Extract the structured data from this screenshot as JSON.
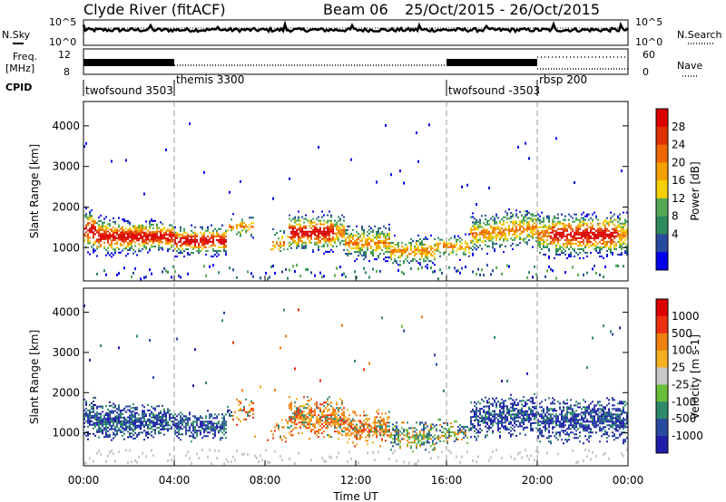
{
  "header": {
    "station": "Clyde River (fitACF)",
    "beam": "Beam 06",
    "date_range": "25/Oct/2015 - 26/Oct/2015"
  },
  "top_panels": {
    "nsky_label": "N.Sky",
    "nsearch_label": "N.Search",
    "freq_label": "Freq.",
    "freq_unit": "[MHz]",
    "nave_label": "Nave",
    "cpid_label": "CPID",
    "noise_ticks": [
      "10^5",
      "10^0"
    ],
    "freq_ticks": [
      "12",
      "8"
    ],
    "nave_ticks": [
      "60",
      "0"
    ]
  },
  "cpid_segments": [
    {
      "name": "twofsound 3503",
      "start_hour": 0
    },
    {
      "name": "themis 3300",
      "start_hour": 4
    },
    {
      "name": "twofsound -3503",
      "start_hour": 16
    },
    {
      "name": "rbsp 200",
      "start_hour": 20
    }
  ],
  "colors": {
    "power_scale": [
      "#0000ee",
      "#2a4a9e",
      "#2e8a5a",
      "#55aa55",
      "#f5d000",
      "#f4a000",
      "#ee6600",
      "#e03000",
      "#dd0000"
    ],
    "velocity_scale": [
      "#1e1ea8",
      "#2a4aa0",
      "#2e8a6a",
      "#6abf3a",
      "#c8c8c8",
      "#f4b020",
      "#ee8010",
      "#ee3010",
      "#dd0000"
    ]
  },
  "chart_data": [
    {
      "type": "heatmap",
      "name": "power",
      "xlabel": "Time UT",
      "ylabel": "Slant Range [km]",
      "xlim": [
        0,
        24
      ],
      "ylim": [
        180,
        4600
      ],
      "yticks": [
        "4000",
        "3000",
        "2000",
        "1000"
      ],
      "colorbar_label": "Power [dB]",
      "colorbar_ticks": [
        "28",
        "24",
        "20",
        "16",
        "12",
        "8",
        "4"
      ],
      "colorbar_range": [
        0,
        32
      ]
    },
    {
      "type": "heatmap",
      "name": "velocity",
      "xlabel": "Time UT",
      "ylabel": "Slant Range [km]",
      "xlim": [
        0,
        24
      ],
      "ylim": [
        180,
        4600
      ],
      "yticks": [
        "4000",
        "3000",
        "2000",
        "1000"
      ],
      "colorbar_label": "Velocity [m s-1]",
      "colorbar_ticks": [
        "1000",
        "500",
        "100",
        "25",
        "-25",
        "-100",
        "-500",
        "-1000"
      ]
    }
  ],
  "time_axis": {
    "label": "Time UT",
    "ticks": [
      "00:00",
      "04:00",
      "08:00",
      "12:00",
      "16:00",
      "20:00",
      "00:00"
    ]
  }
}
